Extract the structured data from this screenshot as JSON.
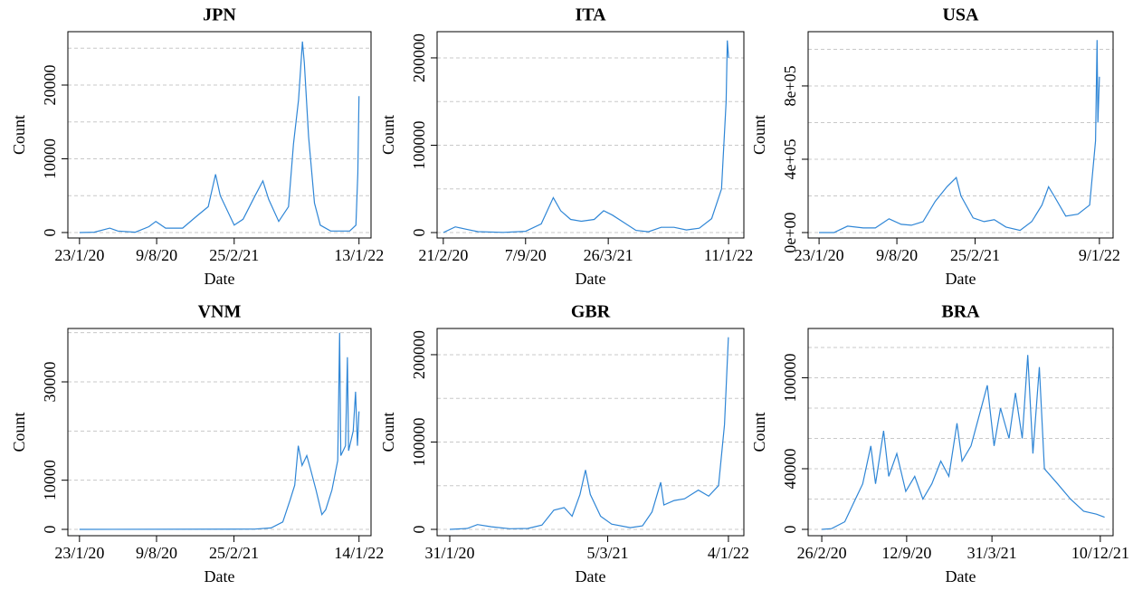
{
  "chart_data": [
    {
      "type": "line",
      "title": "JPN",
      "x_label": "Date",
      "y_label": "Count",
      "color": "#2f86d6",
      "xlim": [
        "2019-12-24",
        "2022-02-13"
      ],
      "xticks": [
        {
          "value": "2020-01-23",
          "label": "23/1/20"
        },
        {
          "value": "2020-08-09",
          "label": "9/8/20"
        },
        {
          "value": "2021-02-25",
          "label": "25/2/21"
        },
        {
          "value": "2022-01-13",
          "label": "13/1/22"
        }
      ],
      "ylim": [
        -740,
        27240
      ],
      "yticks": [
        0,
        10000,
        20000
      ],
      "grid_lines": [
        0,
        5000,
        10000,
        15000,
        20000,
        25000
      ],
      "x": [
        "2020-01-23",
        "2020-03-01",
        "2020-04-10",
        "2020-05-01",
        "2020-06-15",
        "2020-07-20",
        "2020-08-07",
        "2020-09-01",
        "2020-10-15",
        "2020-11-20",
        "2020-12-20",
        "2021-01-08",
        "2021-01-20",
        "2021-02-25",
        "2021-03-20",
        "2021-04-20",
        "2021-05-10",
        "2021-05-25",
        "2021-06-20",
        "2021-07-15",
        "2021-07-28",
        "2021-08-10",
        "2021-08-20",
        "2021-08-25",
        "2021-09-05",
        "2021-09-20",
        "2021-10-05",
        "2021-11-01",
        "2021-12-20",
        "2022-01-05",
        "2022-01-10",
        "2022-01-13"
      ],
      "values": [
        0,
        50,
        600,
        200,
        50,
        800,
        1500,
        600,
        600,
        2200,
        3500,
        7900,
        5000,
        1000,
        1800,
        5000,
        7000,
        4500,
        1500,
        3500,
        12000,
        18000,
        25900,
        23000,
        13000,
        4000,
        1000,
        200,
        200,
        1000,
        8000,
        18500
      ]
    },
    {
      "type": "line",
      "title": "ITA",
      "x_label": "Date",
      "y_label": "Count",
      "color": "#2f86d6",
      "xlim": [
        "2020-02-06",
        "2022-02-17"
      ],
      "xticks": [
        {
          "value": "2020-02-21",
          "label": "21/2/20"
        },
        {
          "value": "2020-09-07",
          "label": "7/9/20"
        },
        {
          "value": "2021-03-26",
          "label": "26/3/21"
        },
        {
          "value": "2022-01-11",
          "label": "11/1/22"
        }
      ],
      "ylim": [
        -6200,
        230000
      ],
      "yticks": [
        0,
        100000,
        200000
      ],
      "grid_lines": [
        0,
        50000,
        100000,
        150000,
        200000
      ],
      "x": [
        "2020-02-21",
        "2020-03-21",
        "2020-04-15",
        "2020-05-15",
        "2020-07-15",
        "2020-09-07",
        "2020-10-15",
        "2020-11-13",
        "2020-12-01",
        "2020-12-25",
        "2021-01-20",
        "2021-02-20",
        "2021-03-15",
        "2021-04-05",
        "2021-05-01",
        "2021-06-01",
        "2021-07-01",
        "2021-08-01",
        "2021-09-01",
        "2021-10-01",
        "2021-11-01",
        "2021-12-01",
        "2021-12-25",
        "2022-01-05",
        "2022-01-08",
        "2022-01-11"
      ],
      "values": [
        0,
        6500,
        4000,
        1000,
        200,
        1500,
        10000,
        40000,
        25000,
        15000,
        13000,
        15000,
        25000,
        20000,
        12000,
        2500,
        900,
        6000,
        6000,
        3000,
        5000,
        16000,
        50000,
        150000,
        220000,
        200000
      ]
    },
    {
      "type": "line",
      "title": "USA",
      "x_label": "Date",
      "y_label": "Count",
      "color": "#2f86d6",
      "xlim": [
        "2019-12-26",
        "2022-02-13"
      ],
      "xticks": [
        {
          "value": "2020-01-23",
          "label": "23/1/20"
        },
        {
          "value": "2020-08-09",
          "label": "9/8/20"
        },
        {
          "value": "2021-02-25",
          "label": "25/2/21"
        },
        {
          "value": "2022-01-09",
          "label": "9/1/22"
        }
      ],
      "ylim": [
        -29600,
        1096000
      ],
      "yticks": [
        {
          "value": 0,
          "label": "0e+00"
        },
        {
          "value": 400000,
          "label": "4e+05"
        },
        {
          "value": 800000,
          "label": "8e+05"
        }
      ],
      "grid_lines": [
        0,
        200000,
        400000,
        600000,
        800000,
        1000000
      ],
      "x": [
        "2020-01-23",
        "2020-03-01",
        "2020-04-05",
        "2020-05-15",
        "2020-06-15",
        "2020-07-20",
        "2020-08-20",
        "2020-09-15",
        "2020-10-15",
        "2020-11-15",
        "2020-12-15",
        "2021-01-08",
        "2021-01-20",
        "2021-02-20",
        "2021-03-20",
        "2021-04-15",
        "2021-05-15",
        "2021-06-20",
        "2021-07-20",
        "2021-08-15",
        "2021-09-01",
        "2021-09-15",
        "2021-10-15",
        "2021-11-15",
        "2021-12-15",
        "2021-12-30",
        "2022-01-03",
        "2022-01-05",
        "2022-01-09"
      ],
      "values": [
        0,
        100,
        35000,
        25000,
        25000,
        75000,
        45000,
        40000,
        60000,
        170000,
        250000,
        300000,
        200000,
        80000,
        60000,
        70000,
        30000,
        12000,
        60000,
        150000,
        250000,
        200000,
        90000,
        100000,
        150000,
        500000,
        1050000,
        600000,
        850000
      ]
    },
    {
      "type": "line",
      "title": "VNM",
      "x_label": "Date",
      "y_label": "Count",
      "color": "#2f86d6",
      "xlim": [
        "2019-12-24",
        "2022-02-14"
      ],
      "xticks": [
        {
          "value": "2020-01-23",
          "label": "23/1/20"
        },
        {
          "value": "2020-08-09",
          "label": "9/8/20"
        },
        {
          "value": "2021-02-25",
          "label": "25/2/21"
        },
        {
          "value": "2022-01-14",
          "label": "14/1/22"
        }
      ],
      "ylim": [
        -1290,
        40860
      ],
      "yticks": [
        0,
        10000,
        30000
      ],
      "grid_lines": [
        0,
        10000,
        20000,
        30000,
        40000
      ],
      "x": [
        "2020-01-23",
        "2021-04-20",
        "2021-06-01",
        "2021-07-01",
        "2021-07-20",
        "2021-08-01",
        "2021-08-10",
        "2021-08-20",
        "2021-09-01",
        "2021-09-10",
        "2021-09-25",
        "2021-10-10",
        "2021-10-20",
        "2021-11-05",
        "2021-11-20",
        "2021-11-25",
        "2021-11-28",
        "2021-12-10",
        "2021-12-15",
        "2021-12-18",
        "2021-12-30",
        "2022-01-05",
        "2022-01-10",
        "2022-01-14"
      ],
      "values": [
        0,
        50,
        300,
        1500,
        6000,
        9000,
        17000,
        13000,
        15000,
        12500,
        8000,
        3000,
        4000,
        8000,
        14000,
        40000,
        15000,
        17000,
        35000,
        16000,
        20000,
        28000,
        17000,
        24000
      ]
    },
    {
      "type": "line",
      "title": "GBR",
      "x_label": "Date",
      "y_label": "Count",
      "color": "#2f86d6",
      "xlim": [
        "2019-12-30",
        "2022-02-12"
      ],
      "xticks": [
        {
          "value": "2020-01-31",
          "label": "31/1/20"
        },
        {
          "value": "2021-03-05",
          "label": "5/3/21"
        },
        {
          "value": "2022-01-04",
          "label": "4/1/22"
        }
      ],
      "ylim": [
        -7250,
        230000
      ],
      "yticks": [
        0,
        100000,
        200000
      ],
      "grid_lines": [
        0,
        50000,
        100000,
        150000,
        200000
      ],
      "x": [
        "2020-01-31",
        "2020-03-15",
        "2020-04-10",
        "2020-05-15",
        "2020-07-01",
        "2020-08-15",
        "2020-09-20",
        "2020-10-20",
        "2020-11-15",
        "2020-12-05",
        "2020-12-25",
        "2021-01-08",
        "2021-01-20",
        "2021-02-15",
        "2021-03-15",
        "2021-05-01",
        "2021-06-01",
        "2021-06-25",
        "2021-07-17",
        "2021-07-25",
        "2021-08-20",
        "2021-09-15",
        "2021-10-20",
        "2021-11-15",
        "2021-12-10",
        "2021-12-25",
        "2022-01-01",
        "2022-01-04"
      ],
      "values": [
        0,
        1000,
        5500,
        3000,
        700,
        1000,
        5000,
        22000,
        25000,
        15000,
        40000,
        68000,
        40000,
        15000,
        6000,
        2000,
        4000,
        20000,
        54000,
        28000,
        33000,
        35000,
        45000,
        38000,
        50000,
        120000,
        190000,
        220000
      ]
    },
    {
      "type": "line",
      "title": "BRA",
      "x_label": "Date",
      "y_label": "Count",
      "color": "#2f86d6",
      "xlim": [
        "2020-01-25",
        "2022-01-09"
      ],
      "xticks": [
        {
          "value": "2020-02-26",
          "label": "26/2/20"
        },
        {
          "value": "2020-09-12",
          "label": "12/9/20"
        },
        {
          "value": "2021-03-31",
          "label": "31/3/21"
        },
        {
          "value": "2021-12-10",
          "label": "10/12/21"
        }
      ],
      "ylim": [
        -4180,
        132500
      ],
      "yticks": [
        0,
        40000,
        100000
      ],
      "grid_lines": [
        0,
        20000,
        40000,
        60000,
        80000,
        100000,
        120000
      ],
      "x": [
        "2020-02-26",
        "2020-03-20",
        "2020-04-20",
        "2020-05-15",
        "2020-06-01",
        "2020-06-20",
        "2020-07-01",
        "2020-07-20",
        "2020-08-01",
        "2020-08-20",
        "2020-09-10",
        "2020-10-01",
        "2020-10-20",
        "2020-11-10",
        "2020-12-01",
        "2020-12-20",
        "2021-01-08",
        "2021-01-20",
        "2021-02-10",
        "2021-03-01",
        "2021-03-20",
        "2021-04-05",
        "2021-04-20",
        "2021-05-10",
        "2021-05-25",
        "2021-06-10",
        "2021-06-23",
        "2021-07-05",
        "2021-07-20",
        "2021-08-01",
        "2021-09-01",
        "2021-10-01",
        "2021-11-01",
        "2021-12-01",
        "2021-12-20"
      ],
      "values": [
        0,
        500,
        5000,
        20000,
        30000,
        55000,
        30000,
        65000,
        35000,
        50000,
        25000,
        35000,
        20000,
        30000,
        45000,
        35000,
        70000,
        45000,
        55000,
        75000,
        95000,
        55000,
        80000,
        60000,
        90000,
        60000,
        115000,
        50000,
        107000,
        40000,
        30000,
        20000,
        12000,
        10000,
        8000
      ]
    }
  ]
}
